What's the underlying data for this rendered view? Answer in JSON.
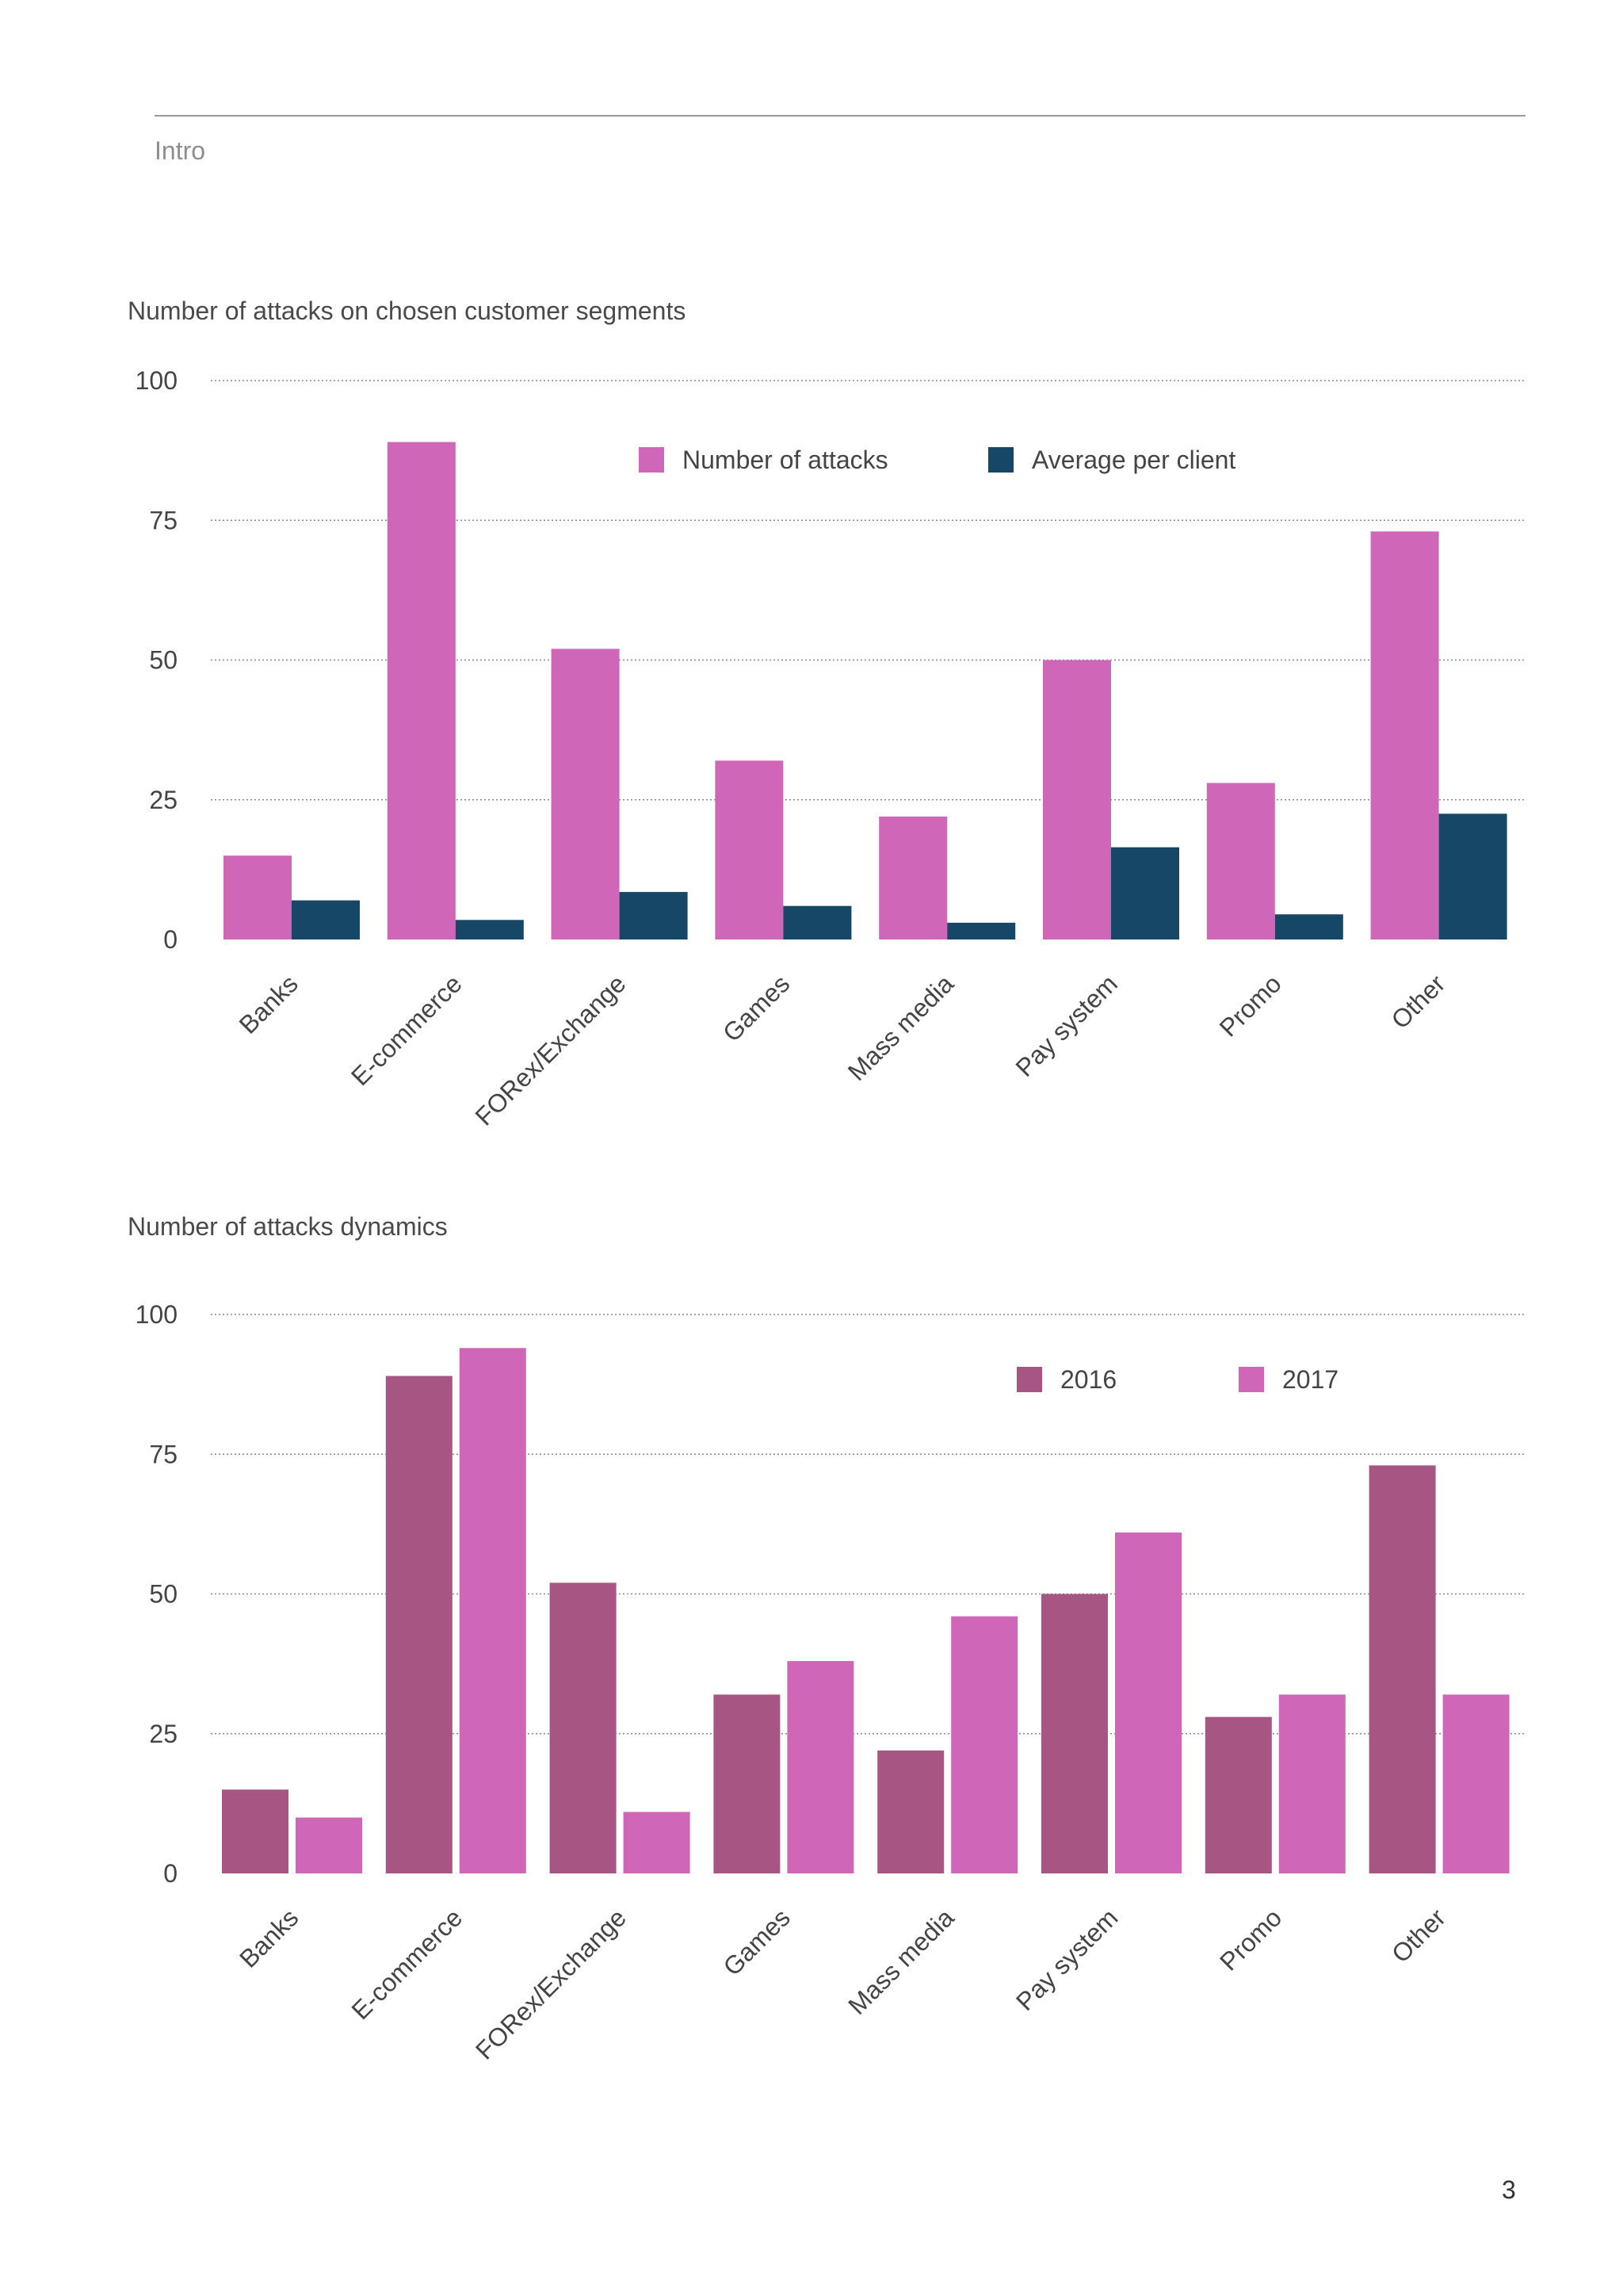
{
  "page": {
    "section_label": "Intro",
    "page_number": "3"
  },
  "chart_data": [
    {
      "type": "bar",
      "title": "Number of attacks on chosen customer segments",
      "categories": [
        "Banks",
        "E-commerce",
        "FORex/Exchange",
        "Games",
        "Mass media",
        "Pay system",
        "Promo",
        "Other"
      ],
      "series": [
        {
          "name": "Number of attacks",
          "color": "#d066b8",
          "values": [
            15,
            89,
            52,
            32,
            22,
            50,
            28,
            73
          ]
        },
        {
          "name": "Average per client",
          "color": "#174766",
          "values": [
            7,
            3.5,
            8.5,
            6,
            3,
            16.5,
            4.5,
            22.5
          ]
        }
      ],
      "yticks": [
        0,
        25,
        50,
        75,
        100
      ],
      "ylim": [
        0,
        100
      ],
      "xlabel": "",
      "ylabel": "",
      "grid": true,
      "legend": "top-center"
    },
    {
      "type": "bar",
      "title": "Number of attacks dynamics",
      "categories": [
        "Banks",
        "E-commerce",
        "FORex/Exchange",
        "Games",
        "Mass media",
        "Pay system",
        "Promo",
        "Other"
      ],
      "series": [
        {
          "name": "2016",
          "color": "#a75683",
          "values": [
            15,
            89,
            52,
            32,
            22,
            50,
            28,
            73
          ]
        },
        {
          "name": "2017",
          "color": "#d066b8",
          "values": [
            10,
            94,
            11,
            38,
            46,
            61,
            32,
            32
          ]
        }
      ],
      "yticks": [
        0,
        25,
        50,
        75,
        100
      ],
      "ylim": [
        0,
        100
      ],
      "xlabel": "",
      "ylabel": "",
      "grid": true,
      "legend": "top-right"
    }
  ]
}
